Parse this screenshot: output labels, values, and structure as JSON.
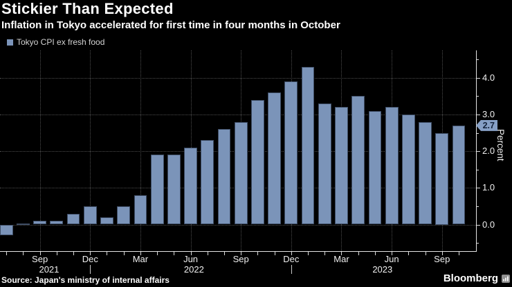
{
  "header": {
    "title": "Stickier Than Expected",
    "subtitle": "Inflation in Tokyo accelerated for first time in four months in October"
  },
  "legend": {
    "label": "Tokyo CPI ex fresh food",
    "swatch_color": "#7B94B9"
  },
  "chart_data": {
    "type": "bar",
    "series_name": "Tokyo CPI ex fresh food",
    "ylabel": "Percent",
    "ylim": [
      -0.75,
      4.75
    ],
    "y_major_ticks": [
      0.0,
      1.0,
      2.0,
      3.0,
      4.0
    ],
    "y_minor_ticks": [
      -0.5,
      0.5,
      1.5,
      2.5,
      3.5,
      4.5
    ],
    "grid": "dotted",
    "legend_position": "top-left",
    "bar_color": "#7B94B9",
    "tag_color": "#87A0C6",
    "categories": [
      "Jul 2021",
      "Aug 2021",
      "Sep 2021",
      "Oct 2021",
      "Nov 2021",
      "Dec 2021",
      "Jan 2022",
      "Feb 2022",
      "Mar 2022",
      "Apr 2022",
      "May 2022",
      "Jun 2022",
      "Jul 2022",
      "Aug 2022",
      "Sep 2022",
      "Oct 2022",
      "Nov 2022",
      "Dec 2022",
      "Jan 2023",
      "Feb 2023",
      "Mar 2023",
      "Apr 2023",
      "May 2023",
      "Jun 2023",
      "Jul 2023",
      "Aug 2023",
      "Sep 2023",
      "Oct 2023"
    ],
    "values": [
      -0.3,
      0.0,
      0.1,
      0.1,
      0.3,
      0.5,
      0.2,
      0.5,
      0.8,
      1.9,
      1.9,
      2.1,
      2.3,
      2.6,
      2.8,
      3.4,
      3.6,
      3.9,
      4.3,
      3.3,
      3.2,
      3.5,
      3.1,
      3.2,
      3.0,
      2.8,
      2.5,
      2.7
    ],
    "latest_value_label": "2.7",
    "latest_value": 2.7,
    "x_tick_labels": [
      {
        "label": "Sep",
        "index": 2
      },
      {
        "label": "Dec",
        "index": 5
      },
      {
        "label": "Mar",
        "index": 8
      },
      {
        "label": "Jun",
        "index": 11
      },
      {
        "label": "Sep",
        "index": 14
      },
      {
        "label": "Dec",
        "index": 17
      },
      {
        "label": "Mar",
        "index": 20
      },
      {
        "label": "Jun",
        "index": 23
      },
      {
        "label": "Sep",
        "index": 26
      }
    ],
    "year_labels": [
      {
        "label": "2021",
        "index": 2.55
      },
      {
        "label": "2022",
        "index": 11.2
      },
      {
        "label": "2023",
        "index": 22.45
      }
    ],
    "year_separator_indices": [
      5,
      17
    ]
  },
  "footer": {
    "source": "Source: Japan's ministry of internal affairs",
    "brand": "Bloomberg"
  }
}
